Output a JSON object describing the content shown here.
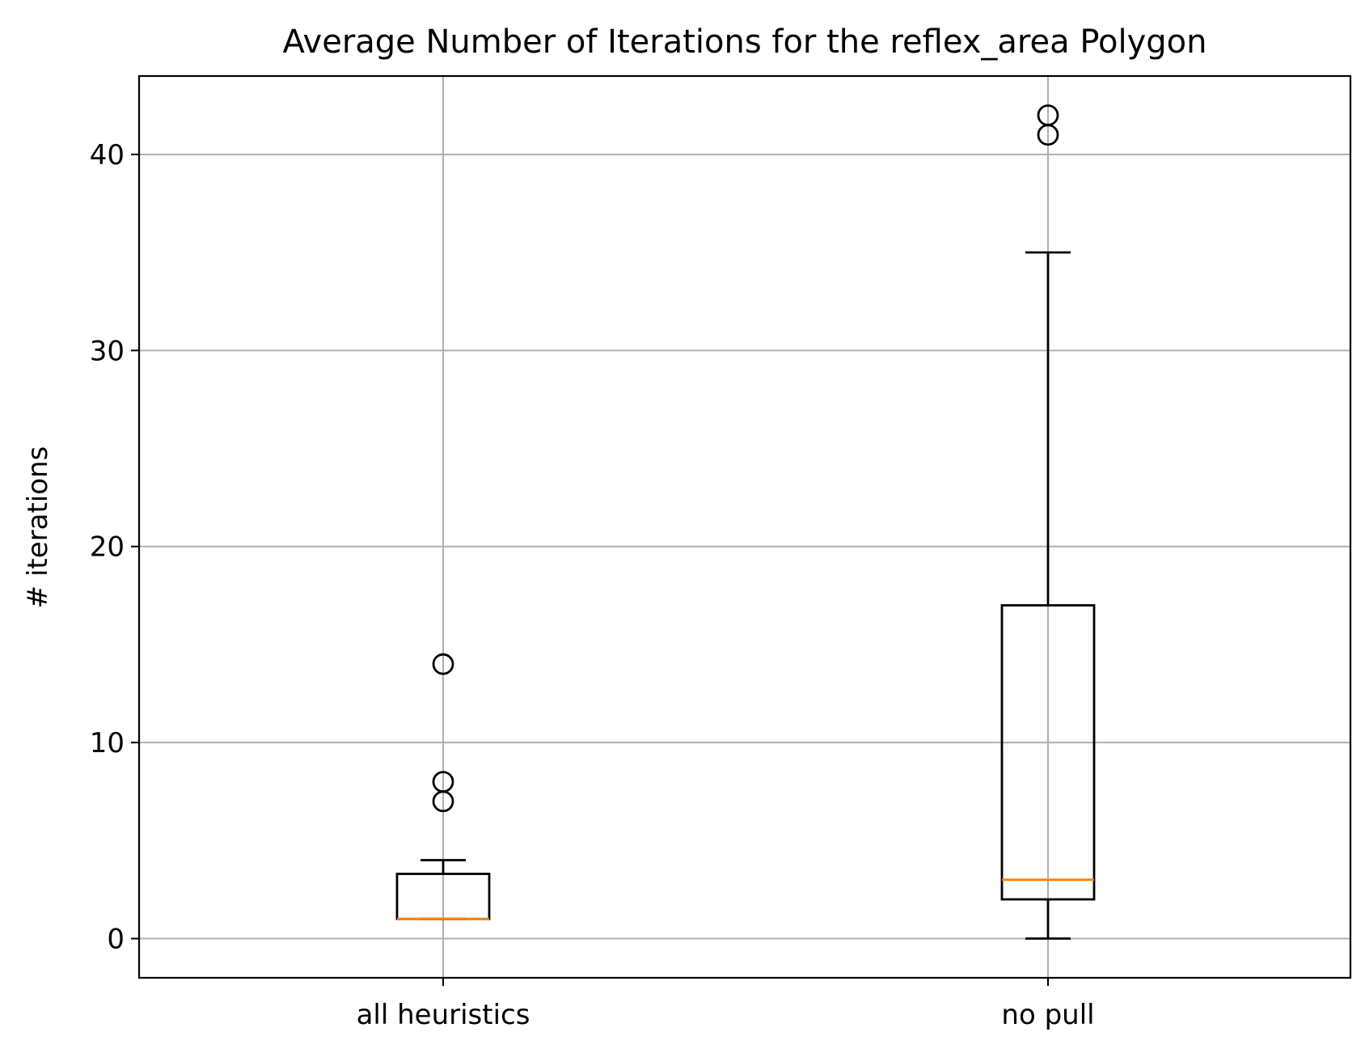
{
  "chart_data": {
    "type": "boxplot",
    "title": "Average Number of Iterations for the reflex_area Polygon",
    "xlabel": "",
    "ylabel": "# iterations",
    "ylim": [
      -2,
      44
    ],
    "grid": true,
    "categories": [
      "all heuristics",
      "no pull"
    ],
    "yticks": [
      0,
      10,
      20,
      30,
      40
    ],
    "boxes": [
      {
        "category": "all heuristics",
        "whisker_low": 1,
        "q1": 1,
        "median": 1,
        "q3": 3.3,
        "whisker_high": 4,
        "outliers": [
          7,
          8,
          14
        ]
      },
      {
        "category": "no pull",
        "whisker_low": 0,
        "q1": 2,
        "median": 3,
        "q3": 17,
        "whisker_high": 35,
        "outliers": [
          41,
          42
        ]
      }
    ]
  },
  "colors": {
    "box": "#000000",
    "median": "#ff7f0e",
    "grid": "#b0b0b0",
    "background": "#ffffff"
  }
}
